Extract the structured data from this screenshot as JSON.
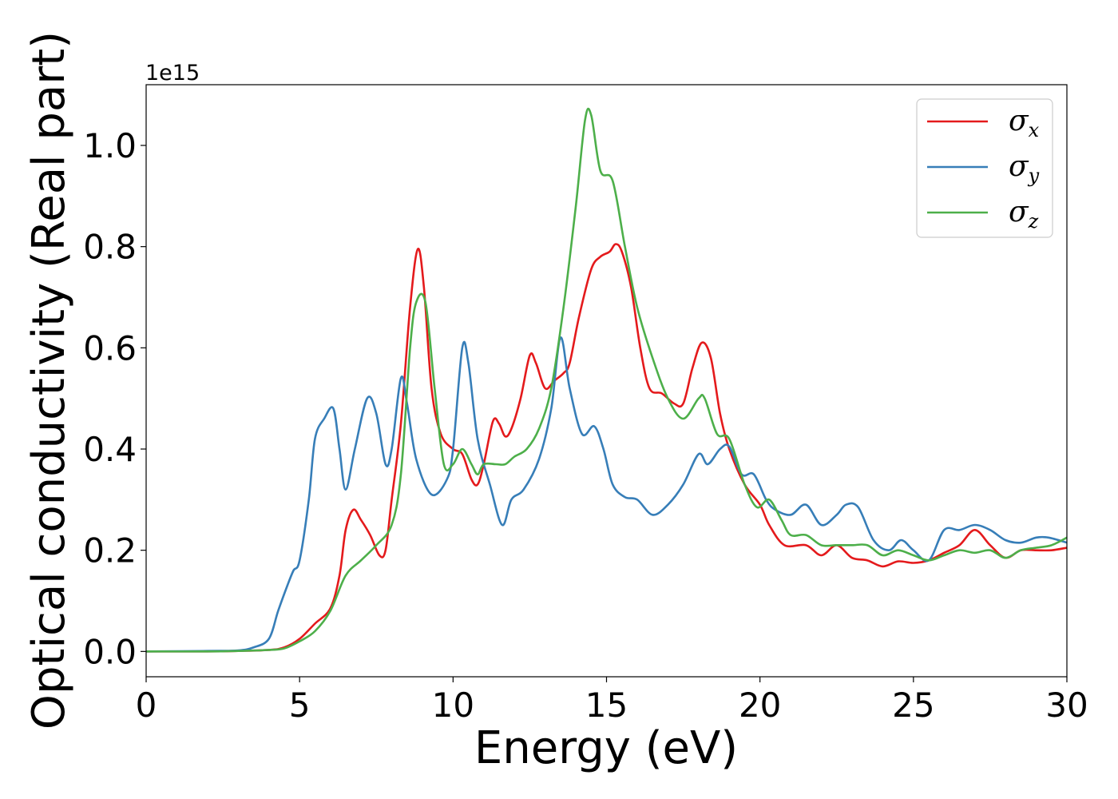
{
  "chart_data": {
    "type": "line",
    "xlabel": "Energy (eV)",
    "ylabel": "Optical conductivity (Real part)",
    "y_offset_text": "1e15",
    "xlim": [
      0,
      30
    ],
    "ylim": [
      -0.05,
      1.12
    ],
    "x_ticks": [
      0,
      5,
      10,
      15,
      20,
      25,
      30
    ],
    "x_tick_labels": [
      "0",
      "5",
      "10",
      "15",
      "20",
      "25",
      "30"
    ],
    "y_ticks": [
      0.0,
      0.2,
      0.4,
      0.6,
      0.8,
      1.0
    ],
    "y_tick_labels": [
      "0.0",
      "0.2",
      "0.4",
      "0.6",
      "0.8",
      "1.0"
    ],
    "grid": false,
    "legend_position": "top-right",
    "series": [
      {
        "name": "σx",
        "symbol": "σ",
        "subscript": "x",
        "color": "#e41a1c",
        "points": [
          [
            0,
            0
          ],
          [
            2,
            0
          ],
          [
            3,
            0.001
          ],
          [
            4,
            0.003
          ],
          [
            4.5,
            0.008
          ],
          [
            5,
            0.025
          ],
          [
            5.5,
            0.055
          ],
          [
            6,
            0.085
          ],
          [
            6.3,
            0.15
          ],
          [
            6.5,
            0.24
          ],
          [
            6.75,
            0.28
          ],
          [
            7,
            0.26
          ],
          [
            7.3,
            0.23
          ],
          [
            7.6,
            0.19
          ],
          [
            7.8,
            0.2
          ],
          [
            8.0,
            0.3
          ],
          [
            8.3,
            0.45
          ],
          [
            8.6,
            0.68
          ],
          [
            8.85,
            0.795
          ],
          [
            9.05,
            0.72
          ],
          [
            9.3,
            0.52
          ],
          [
            9.6,
            0.43
          ],
          [
            10.0,
            0.4
          ],
          [
            10.3,
            0.39
          ],
          [
            10.6,
            0.34
          ],
          [
            10.8,
            0.33
          ],
          [
            11.0,
            0.37
          ],
          [
            11.3,
            0.455
          ],
          [
            11.5,
            0.45
          ],
          [
            11.7,
            0.425
          ],
          [
            11.9,
            0.44
          ],
          [
            12.2,
            0.5
          ],
          [
            12.5,
            0.585
          ],
          [
            12.7,
            0.57
          ],
          [
            13.0,
            0.52
          ],
          [
            13.3,
            0.535
          ],
          [
            13.6,
            0.55
          ],
          [
            13.8,
            0.57
          ],
          [
            14.1,
            0.66
          ],
          [
            14.5,
            0.755
          ],
          [
            14.8,
            0.78
          ],
          [
            15.1,
            0.79
          ],
          [
            15.3,
            0.805
          ],
          [
            15.5,
            0.79
          ],
          [
            15.8,
            0.72
          ],
          [
            16.1,
            0.6
          ],
          [
            16.4,
            0.52
          ],
          [
            16.8,
            0.51
          ],
          [
            17.2,
            0.49
          ],
          [
            17.5,
            0.49
          ],
          [
            17.8,
            0.56
          ],
          [
            18.1,
            0.61
          ],
          [
            18.4,
            0.58
          ],
          [
            18.7,
            0.47
          ],
          [
            19.0,
            0.4
          ],
          [
            19.5,
            0.33
          ],
          [
            20.0,
            0.29
          ],
          [
            20.3,
            0.25
          ],
          [
            20.8,
            0.21
          ],
          [
            21.5,
            0.21
          ],
          [
            22.0,
            0.19
          ],
          [
            22.5,
            0.21
          ],
          [
            23.0,
            0.185
          ],
          [
            23.5,
            0.18
          ],
          [
            24.0,
            0.168
          ],
          [
            24.5,
            0.178
          ],
          [
            25.0,
            0.175
          ],
          [
            25.5,
            0.18
          ],
          [
            26.0,
            0.195
          ],
          [
            26.5,
            0.21
          ],
          [
            27.0,
            0.24
          ],
          [
            27.5,
            0.21
          ],
          [
            28.0,
            0.185
          ],
          [
            28.5,
            0.2
          ],
          [
            29.0,
            0.2
          ],
          [
            29.5,
            0.2
          ],
          [
            30,
            0.205
          ]
        ]
      },
      {
        "name": "σy",
        "symbol": "σ",
        "subscript": "y",
        "color": "#377eb8",
        "points": [
          [
            0,
            0
          ],
          [
            2,
            0.001
          ],
          [
            3,
            0.002
          ],
          [
            3.5,
            0.008
          ],
          [
            4.0,
            0.025
          ],
          [
            4.3,
            0.08
          ],
          [
            4.6,
            0.13
          ],
          [
            4.8,
            0.16
          ],
          [
            5.0,
            0.18
          ],
          [
            5.3,
            0.3
          ],
          [
            5.5,
            0.42
          ],
          [
            5.8,
            0.46
          ],
          [
            6.1,
            0.48
          ],
          [
            6.3,
            0.4
          ],
          [
            6.5,
            0.32
          ],
          [
            6.8,
            0.4
          ],
          [
            7.2,
            0.5
          ],
          [
            7.5,
            0.47
          ],
          [
            7.8,
            0.37
          ],
          [
            8.0,
            0.4
          ],
          [
            8.3,
            0.54
          ],
          [
            8.5,
            0.49
          ],
          [
            8.8,
            0.38
          ],
          [
            9.3,
            0.31
          ],
          [
            9.8,
            0.34
          ],
          [
            10.0,
            0.4
          ],
          [
            10.3,
            0.6
          ],
          [
            10.5,
            0.57
          ],
          [
            10.8,
            0.42
          ],
          [
            11.2,
            0.33
          ],
          [
            11.6,
            0.25
          ],
          [
            11.9,
            0.3
          ],
          [
            12.3,
            0.32
          ],
          [
            12.8,
            0.38
          ],
          [
            13.2,
            0.48
          ],
          [
            13.5,
            0.62
          ],
          [
            13.8,
            0.52
          ],
          [
            14.2,
            0.43
          ],
          [
            14.6,
            0.445
          ],
          [
            14.9,
            0.4
          ],
          [
            15.2,
            0.33
          ],
          [
            15.6,
            0.305
          ],
          [
            16.0,
            0.3
          ],
          [
            16.5,
            0.27
          ],
          [
            17.0,
            0.29
          ],
          [
            17.5,
            0.33
          ],
          [
            18.0,
            0.39
          ],
          [
            18.3,
            0.37
          ],
          [
            18.7,
            0.4
          ],
          [
            19.0,
            0.405
          ],
          [
            19.4,
            0.35
          ],
          [
            19.8,
            0.35
          ],
          [
            20.2,
            0.3
          ],
          [
            20.5,
            0.28
          ],
          [
            21.0,
            0.27
          ],
          [
            21.5,
            0.29
          ],
          [
            22.0,
            0.25
          ],
          [
            22.5,
            0.27
          ],
          [
            22.8,
            0.29
          ],
          [
            23.2,
            0.285
          ],
          [
            23.7,
            0.22
          ],
          [
            24.2,
            0.2
          ],
          [
            24.6,
            0.22
          ],
          [
            25.0,
            0.2
          ],
          [
            25.5,
            0.18
          ],
          [
            26.0,
            0.24
          ],
          [
            26.5,
            0.24
          ],
          [
            27.0,
            0.25
          ],
          [
            27.5,
            0.24
          ],
          [
            28.0,
            0.22
          ],
          [
            28.5,
            0.215
          ],
          [
            29.0,
            0.225
          ],
          [
            29.4,
            0.225
          ],
          [
            30,
            0.215
          ]
        ]
      },
      {
        "name": "σz",
        "symbol": "σ",
        "subscript": "z",
        "color": "#4daf4a",
        "points": [
          [
            0,
            0
          ],
          [
            2,
            0
          ],
          [
            3,
            0.001
          ],
          [
            4,
            0.003
          ],
          [
            4.5,
            0.006
          ],
          [
            5,
            0.02
          ],
          [
            5.5,
            0.04
          ],
          [
            6,
            0.08
          ],
          [
            6.5,
            0.15
          ],
          [
            7,
            0.18
          ],
          [
            7.5,
            0.21
          ],
          [
            8,
            0.25
          ],
          [
            8.3,
            0.35
          ],
          [
            8.6,
            0.6
          ],
          [
            8.8,
            0.69
          ],
          [
            9.1,
            0.69
          ],
          [
            9.4,
            0.52
          ],
          [
            9.7,
            0.37
          ],
          [
            10.0,
            0.37
          ],
          [
            10.3,
            0.4
          ],
          [
            10.6,
            0.37
          ],
          [
            10.8,
            0.35
          ],
          [
            11.0,
            0.37
          ],
          [
            11.4,
            0.37
          ],
          [
            11.7,
            0.37
          ],
          [
            12.0,
            0.385
          ],
          [
            12.4,
            0.4
          ],
          [
            12.8,
            0.44
          ],
          [
            13.2,
            0.52
          ],
          [
            13.6,
            0.68
          ],
          [
            14.0,
            0.88
          ],
          [
            14.3,
            1.05
          ],
          [
            14.5,
            1.06
          ],
          [
            14.8,
            0.95
          ],
          [
            15.2,
            0.93
          ],
          [
            15.6,
            0.8
          ],
          [
            16.0,
            0.68
          ],
          [
            16.5,
            0.58
          ],
          [
            17.0,
            0.5
          ],
          [
            17.5,
            0.46
          ],
          [
            18.0,
            0.5
          ],
          [
            18.2,
            0.5
          ],
          [
            18.6,
            0.43
          ],
          [
            19.0,
            0.42
          ],
          [
            19.5,
            0.33
          ],
          [
            19.9,
            0.285
          ],
          [
            20.3,
            0.3
          ],
          [
            20.7,
            0.26
          ],
          [
            21.0,
            0.23
          ],
          [
            21.5,
            0.23
          ],
          [
            22.0,
            0.21
          ],
          [
            22.5,
            0.21
          ],
          [
            23.0,
            0.21
          ],
          [
            23.5,
            0.21
          ],
          [
            24.0,
            0.19
          ],
          [
            24.5,
            0.2
          ],
          [
            25.0,
            0.19
          ],
          [
            25.5,
            0.18
          ],
          [
            26.0,
            0.19
          ],
          [
            26.5,
            0.2
          ],
          [
            27.0,
            0.195
          ],
          [
            27.5,
            0.2
          ],
          [
            28.0,
            0.185
          ],
          [
            28.5,
            0.2
          ],
          [
            29.0,
            0.205
          ],
          [
            29.5,
            0.21
          ],
          [
            30,
            0.225
          ]
        ]
      }
    ]
  }
}
